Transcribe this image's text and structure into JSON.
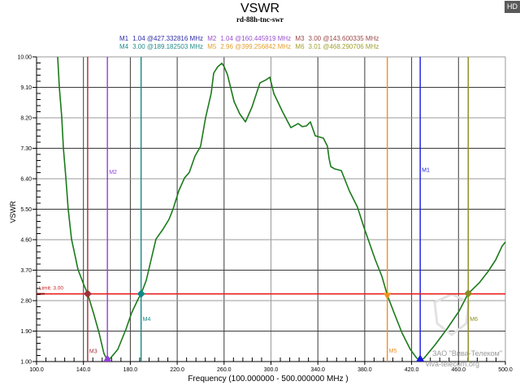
{
  "header": {
    "title": "VSWR",
    "subtitle": "rd-88h-tnc-swr",
    "badge": "HD"
  },
  "legend": {
    "row1": [
      {
        "label": "M1",
        "value": "1.04 @427.332816 MHz",
        "color": "#2c2ca8"
      },
      {
        "label": "M2",
        "value": "1.04 @160.445919 MHz",
        "color": "#9a52cc"
      },
      {
        "label": "M3",
        "value": "3.00 @143.600335 MHz",
        "color": "#9c4848"
      }
    ],
    "row2": [
      {
        "label": "M4",
        "value": "3.00 @189.182503 MHz",
        "color": "#238a8a"
      },
      {
        "label": "M5",
        "value": "2.96 @399.256842 MHz",
        "color": "#e4a030"
      },
      {
        "label": "M6",
        "value": "3.01 @468.290706 MHz",
        "color": "#a0a030"
      }
    ]
  },
  "axes": {
    "ylabel": "VSWR",
    "xlabel": "Frequency (100.000000 - 500.000000 MHz )"
  },
  "watermark": {
    "company": "ЗАО \"Вива-Телеком\"",
    "site": "viva-telecom.org"
  },
  "chart_data": {
    "type": "line",
    "title": "VSWR",
    "subtitle": "rd-88h-tnc-swr",
    "xlabel": "Frequency (100.000000 - 500.000000 MHz )",
    "ylabel": "VSWR",
    "xlim": [
      100,
      500
    ],
    "ylim": [
      1.0,
      10.0
    ],
    "xticks": [
      "100.0",
      "140.0",
      "180.0",
      "220.0",
      "260.0",
      "300.0",
      "340.0",
      "380.0",
      "420.0",
      "460.0",
      "500.0"
    ],
    "yticks": [
      "1.00",
      "1.90",
      "2.80",
      "3.70",
      "4.60",
      "5.50",
      "6.40",
      "7.30",
      "8.20",
      "9.10",
      "10.00"
    ],
    "grid": true,
    "limit": {
      "label": "Limit: 3.00",
      "value": 3.0,
      "color": "#e82020"
    },
    "series": [
      {
        "name": "VSWR",
        "color": "#1b7a1b",
        "x": [
          118.0,
          119.4,
          121.5,
          122.9,
          125.0,
          127.0,
          129.8,
          135.4,
          140.2,
          143.6,
          148.5,
          153.4,
          157.5,
          160.4,
          163.1,
          169.3,
          176.3,
          181.1,
          186.7,
          189.2,
          193.6,
          197.7,
          201.9,
          207.5,
          213.0,
          216.5,
          221.3,
          226.2,
          230.3,
          235.2,
          240.0,
          244.2,
          249.0,
          251.1,
          254.6,
          258.1,
          260.1,
          262.9,
          268.5,
          273.3,
          278.2,
          283.7,
          290.6,
          296.2,
          299.0,
          302.4,
          310.0,
          317.0,
          323.2,
          326.7,
          330.2,
          333.6,
          337.8,
          344.7,
          348.2,
          349.6,
          351.0,
          354.4,
          360.0,
          366.9,
          373.8,
          379.4,
          384.2,
          389.1,
          394.6,
          399.3,
          405.0,
          411.9,
          418.9,
          424.4,
          427.3,
          430.7,
          439.7,
          450.1,
          460.5,
          468.3,
          477.8,
          484.8,
          491.7,
          497.2,
          500.0
        ],
        "y": [
          10.0,
          9.11,
          8.22,
          7.31,
          6.42,
          5.51,
          4.62,
          3.71,
          3.28,
          3.0,
          2.44,
          1.84,
          1.24,
          1.04,
          1.1,
          1.36,
          1.96,
          2.44,
          2.85,
          3.0,
          3.4,
          4.0,
          4.62,
          4.89,
          5.2,
          5.51,
          6.04,
          6.42,
          6.59,
          7.07,
          7.36,
          8.2,
          8.92,
          9.52,
          9.71,
          9.81,
          9.71,
          9.47,
          8.68,
          8.32,
          8.08,
          8.51,
          9.23,
          9.33,
          9.4,
          8.92,
          8.37,
          7.91,
          8.03,
          7.94,
          7.96,
          8.08,
          7.67,
          7.6,
          7.36,
          7.0,
          6.76,
          6.69,
          6.64,
          6.04,
          5.56,
          4.96,
          4.48,
          4.0,
          3.52,
          2.96,
          2.44,
          1.84,
          1.36,
          1.1,
          1.04,
          1.1,
          1.48,
          1.96,
          2.49,
          3.01,
          3.33,
          3.64,
          4.0,
          4.41,
          4.53
        ]
      }
    ],
    "markers": [
      {
        "name": "M1",
        "freq": 427.332816,
        "vswr": 1.04,
        "color": "#1818e0",
        "shape": "triangle-up",
        "label_y": 6.6
      },
      {
        "name": "M2",
        "freq": 160.445919,
        "vswr": 1.04,
        "color": "#9040d8",
        "shape": "triangle-up",
        "label_y": 6.55
      },
      {
        "name": "M3",
        "freq": 143.600335,
        "vswr": 3.0,
        "color": "#a03038",
        "shape": "diamond",
        "label_y": 1.25
      },
      {
        "name": "M4",
        "freq": 189.182503,
        "vswr": 3.0,
        "color": "#108888",
        "shape": "diamond",
        "label_y": 2.2
      },
      {
        "name": "M5",
        "freq": 399.256842,
        "vswr": 2.96,
        "color": "#f09020",
        "shape": "triangle-down",
        "label_y": 1.27
      },
      {
        "name": "M6",
        "freq": 468.290706,
        "vswr": 3.01,
        "color": "#8c8a20",
        "shape": "diamond",
        "label_y": 2.2
      }
    ]
  }
}
